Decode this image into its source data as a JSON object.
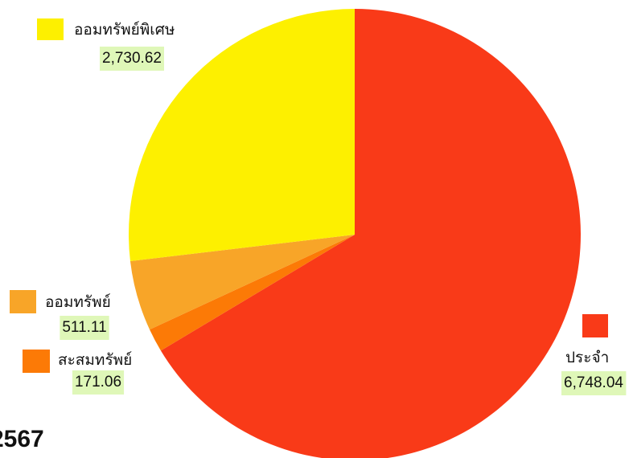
{
  "chart_data": {
    "type": "pie",
    "title": "2567",
    "categories": [
      "ประจำ",
      "สะสมทรัพย์",
      "ออมทรัพย์",
      "ออมทรัพย์พิเศษ"
    ],
    "values": [
      6748.04,
      171.06,
      511.11,
      2730.62
    ],
    "value_labels": [
      "6,748.04",
      "171.06",
      "511.11",
      "2,730.62"
    ],
    "colors": [
      "#f93a18",
      "#fc7a06",
      "#f8a528",
      "#fdf000"
    ]
  }
}
